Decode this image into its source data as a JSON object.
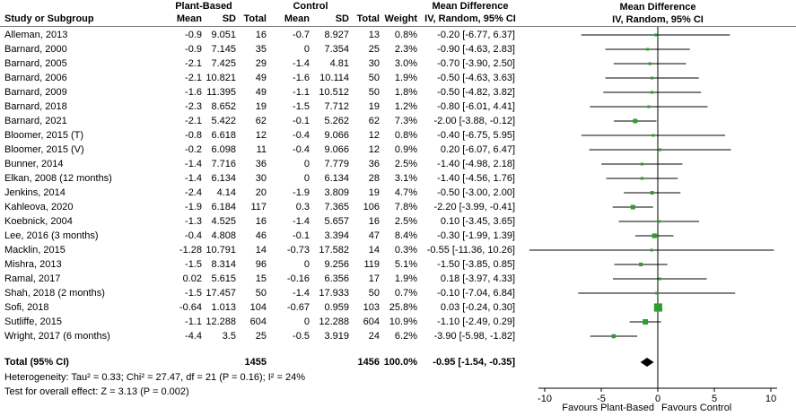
{
  "header": {
    "group_plant": "Plant-Based",
    "group_control": "Control",
    "md_stat": "Mean Difference",
    "md_plot": "Mean Difference",
    "col_study": "Study or Subgroup",
    "col_mean": "Mean",
    "col_sd": "SD",
    "col_total": "Total",
    "col_weight": "Weight",
    "col_ci": "IV, Random, 95% CI",
    "col_ci_plot": "IV, Random, 95% CI"
  },
  "plot": {
    "marker_color": "#2e9c2e",
    "line_color": "#000000",
    "diamond_color": "#000000"
  },
  "chart_data": {
    "type": "forest",
    "effect_measure": "Mean Difference",
    "method": "IV, Random, 95% CI",
    "axis": {
      "min": -10,
      "max": 10,
      "ticks": [
        -10,
        -5,
        0,
        5,
        10
      ]
    },
    "favours_left": "Favours Plant-Based",
    "favours_right": "Favours Control",
    "studies": [
      {
        "study": "Alleman, 2013",
        "p_mean": "-0.9",
        "p_sd": "9.051",
        "p_n": "16",
        "c_mean": "-0.7",
        "c_sd": "8.927",
        "c_n": "13",
        "weight": "0.8%",
        "ci_text": "-0.20 [-6.77, 6.37]",
        "md": -0.2,
        "lo": -6.77,
        "hi": 6.37,
        "w": 0.8
      },
      {
        "study": "Barnard, 2000",
        "p_mean": "-0.9",
        "p_sd": "7.145",
        "p_n": "35",
        "c_mean": "0",
        "c_sd": "7.354",
        "c_n": "25",
        "weight": "2.3%",
        "ci_text": "-0.90 [-4.63, 2.83]",
        "md": -0.9,
        "lo": -4.63,
        "hi": 2.83,
        "w": 2.3
      },
      {
        "study": "Barnard, 2005",
        "p_mean": "-2.1",
        "p_sd": "7.425",
        "p_n": "29",
        "c_mean": "-1.4",
        "c_sd": "4.81",
        "c_n": "30",
        "weight": "3.0%",
        "ci_text": "-0.70 [-3.90, 2.50]",
        "md": -0.7,
        "lo": -3.9,
        "hi": 2.5,
        "w": 3.0
      },
      {
        "study": "Barnard, 2006",
        "p_mean": "-2.1",
        "p_sd": "10.821",
        "p_n": "49",
        "c_mean": "-1.6",
        "c_sd": "10.114",
        "c_n": "50",
        "weight": "1.9%",
        "ci_text": "-0.50 [-4.63, 3.63]",
        "md": -0.5,
        "lo": -4.63,
        "hi": 3.63,
        "w": 1.9
      },
      {
        "study": "Barnard, 2009",
        "p_mean": "-1.6",
        "p_sd": "11.395",
        "p_n": "49",
        "c_mean": "-1.1",
        "c_sd": "10.512",
        "c_n": "50",
        "weight": "1.8%",
        "ci_text": "-0.50 [-4.82, 3.82]",
        "md": -0.5,
        "lo": -4.82,
        "hi": 3.82,
        "w": 1.8
      },
      {
        "study": "Barnard, 2018",
        "p_mean": "-2.3",
        "p_sd": "8.652",
        "p_n": "19",
        "c_mean": "-1.5",
        "c_sd": "7.712",
        "c_n": "19",
        "weight": "1.2%",
        "ci_text": "-0.80 [-6.01, 4.41]",
        "md": -0.8,
        "lo": -6.01,
        "hi": 4.41,
        "w": 1.2
      },
      {
        "study": "Barnard, 2021",
        "p_mean": "-2.1",
        "p_sd": "5.422",
        "p_n": "62",
        "c_mean": "-0.1",
        "c_sd": "5.262",
        "c_n": "62",
        "weight": "7.3%",
        "ci_text": "-2.00 [-3.88, -0.12]",
        "md": -2.0,
        "lo": -3.88,
        "hi": -0.12,
        "w": 7.3
      },
      {
        "study": "Bloomer, 2015 (T)",
        "p_mean": "-0.8",
        "p_sd": "6.618",
        "p_n": "12",
        "c_mean": "-0.4",
        "c_sd": "9.066",
        "c_n": "12",
        "weight": "0.8%",
        "ci_text": "-0.40 [-6.75, 5.95]",
        "md": -0.4,
        "lo": -6.75,
        "hi": 5.95,
        "w": 0.8
      },
      {
        "study": "Bloomer, 2015 (V)",
        "p_mean": "-0.2",
        "p_sd": "6.098",
        "p_n": "11",
        "c_mean": "-0.4",
        "c_sd": "9.066",
        "c_n": "12",
        "weight": "0.9%",
        "ci_text": "0.20 [-6.07, 6.47]",
        "md": 0.2,
        "lo": -6.07,
        "hi": 6.47,
        "w": 0.9
      },
      {
        "study": "Bunner, 2014",
        "p_mean": "-1.4",
        "p_sd": "7.716",
        "p_n": "36",
        "c_mean": "0",
        "c_sd": "7.779",
        "c_n": "36",
        "weight": "2.5%",
        "ci_text": "-1.40 [-4.98, 2.18]",
        "md": -1.4,
        "lo": -4.98,
        "hi": 2.18,
        "w": 2.5
      },
      {
        "study": "Elkan, 2008 (12 months)",
        "p_mean": "-1.4",
        "p_sd": "6.134",
        "p_n": "30",
        "c_mean": "0",
        "c_sd": "6.134",
        "c_n": "28",
        "weight": "3.1%",
        "ci_text": "-1.40 [-4.56, 1.76]",
        "md": -1.4,
        "lo": -4.56,
        "hi": 1.76,
        "w": 3.1
      },
      {
        "study": "Jenkins, 2014",
        "p_mean": "-2.4",
        "p_sd": "4.14",
        "p_n": "20",
        "c_mean": "-1.9",
        "c_sd": "3.809",
        "c_n": "19",
        "weight": "4.7%",
        "ci_text": "-0.50 [-3.00, 2.00]",
        "md": -0.5,
        "lo": -3.0,
        "hi": 2.0,
        "w": 4.7
      },
      {
        "study": "Kahleova, 2020",
        "p_mean": "-1.9",
        "p_sd": "6.184",
        "p_n": "117",
        "c_mean": "0.3",
        "c_sd": "7.365",
        "c_n": "106",
        "weight": "7.8%",
        "ci_text": "-2.20 [-3.99, -0.41]",
        "md": -2.2,
        "lo": -3.99,
        "hi": -0.41,
        "w": 7.8
      },
      {
        "study": "Koebnick, 2004",
        "p_mean": "-1.3",
        "p_sd": "4.525",
        "p_n": "16",
        "c_mean": "-1.4",
        "c_sd": "5.657",
        "c_n": "16",
        "weight": "2.5%",
        "ci_text": "0.10 [-3.45, 3.65]",
        "md": 0.1,
        "lo": -3.45,
        "hi": 3.65,
        "w": 2.5
      },
      {
        "study": "Lee, 2016 (3 months)",
        "p_mean": "-0.4",
        "p_sd": "4.808",
        "p_n": "46",
        "c_mean": "-0.1",
        "c_sd": "3.394",
        "c_n": "47",
        "weight": "8.4%",
        "ci_text": "-0.30 [-1.99, 1.39]",
        "md": -0.3,
        "lo": -1.99,
        "hi": 1.39,
        "w": 8.4
      },
      {
        "study": "Macklin, 2015",
        "p_mean": "-1.28",
        "p_sd": "10.791",
        "p_n": "14",
        "c_mean": "-0.73",
        "c_sd": "17.582",
        "c_n": "14",
        "weight": "0.3%",
        "ci_text": "-0.55 [-11.36, 10.26]",
        "md": -0.55,
        "lo": -11.36,
        "hi": 10.26,
        "w": 0.3
      },
      {
        "study": "Mishra, 2013",
        "p_mean": "-1.5",
        "p_sd": "8.314",
        "p_n": "96",
        "c_mean": "0",
        "c_sd": "9.256",
        "c_n": "119",
        "weight": "5.1%",
        "ci_text": "-1.50 [-3.85, 0.85]",
        "md": -1.5,
        "lo": -3.85,
        "hi": 0.85,
        "w": 5.1
      },
      {
        "study": "Ramal, 2017",
        "p_mean": "0.02",
        "p_sd": "5.615",
        "p_n": "15",
        "c_mean": "-0.16",
        "c_sd": "6.356",
        "c_n": "17",
        "weight": "1.9%",
        "ci_text": "0.18 [-3.97, 4.33]",
        "md": 0.18,
        "lo": -3.97,
        "hi": 4.33,
        "w": 1.9
      },
      {
        "study": "Shah, 2018 (2 months)",
        "p_mean": "-1.5",
        "p_sd": "17.457",
        "p_n": "50",
        "c_mean": "-1.4",
        "c_sd": "17.933",
        "c_n": "50",
        "weight": "0.7%",
        "ci_text": "-0.10 [-7.04, 6.84]",
        "md": -0.1,
        "lo": -7.04,
        "hi": 6.84,
        "w": 0.7
      },
      {
        "study": "Sofi, 2018",
        "p_mean": "-0.64",
        "p_sd": "1.013",
        "p_n": "104",
        "c_mean": "-0.67",
        "c_sd": "0.959",
        "c_n": "103",
        "weight": "25.8%",
        "ci_text": "0.03 [-0.24, 0.30]",
        "md": 0.03,
        "lo": -0.24,
        "hi": 0.3,
        "w": 25.8
      },
      {
        "study": "Sutliffe, 2015",
        "p_mean": "-1.1",
        "p_sd": "12.288",
        "p_n": "604",
        "c_mean": "0",
        "c_sd": "12.288",
        "c_n": "604",
        "weight": "10.9%",
        "ci_text": "-1.10 [-2.49, 0.29]",
        "md": -1.1,
        "lo": -2.49,
        "hi": 0.29,
        "w": 10.9
      },
      {
        "study": "Wright, 2017 (6 months)",
        "p_mean": "-4.4",
        "p_sd": "3.5",
        "p_n": "25",
        "c_mean": "-0.5",
        "c_sd": "3.919",
        "c_n": "24",
        "weight": "6.2%",
        "ci_text": "-3.90 [-5.98, -1.82]",
        "md": -3.9,
        "lo": -5.98,
        "hi": -1.82,
        "w": 6.2
      }
    ],
    "total": {
      "label": "Total (95% CI)",
      "p_n": "1455",
      "c_n": "1456",
      "weight": "100.0%",
      "ci_text": "-0.95 [-1.54, -0.35]",
      "md": -0.95,
      "lo": -1.54,
      "hi": -0.35
    }
  },
  "footer": {
    "heterogeneity": "Heterogeneity: Tau² = 0.33; Chi² = 27.47, df = 21 (P = 0.16); I² = 24%",
    "overall_effect": "Test for overall effect: Z = 3.13 (P = 0.002)"
  }
}
